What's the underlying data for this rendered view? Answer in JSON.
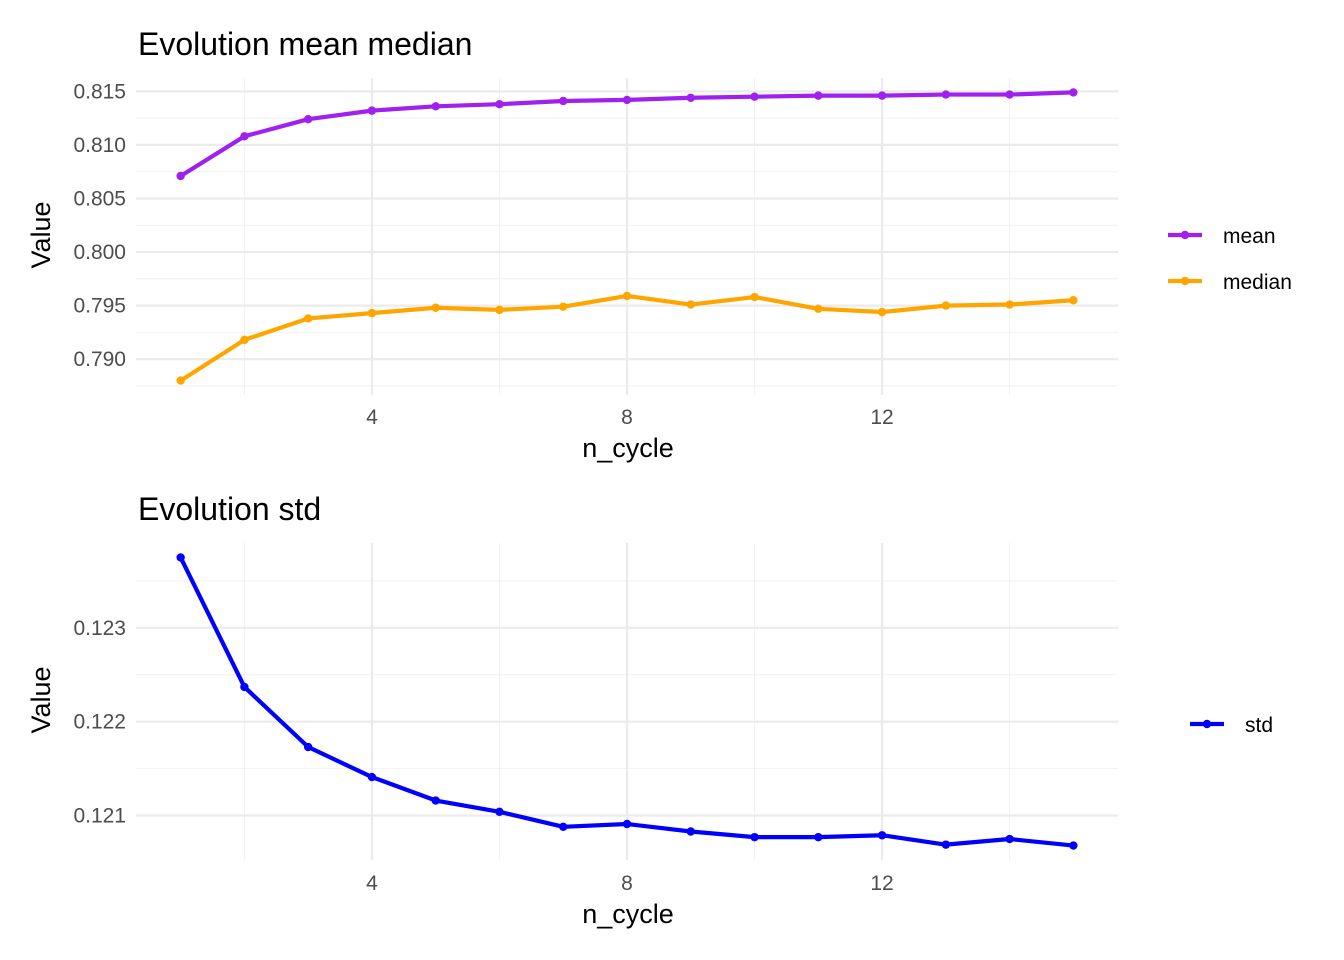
{
  "chart_data": [
    {
      "type": "line",
      "title": "Evolution mean median",
      "xlabel": "n_cycle",
      "ylabel": "Value",
      "xlim": [
        1,
        15
      ],
      "ylim": [
        0.788,
        0.8149
      ],
      "x_ticks": [
        4,
        8,
        12
      ],
      "x_tick_labels": [
        "4",
        "8",
        "12"
      ],
      "y_ticks": [
        0.79,
        0.795,
        0.8,
        0.805,
        0.81,
        0.815
      ],
      "y_tick_labels": [
        "0.790",
        "0.795",
        "0.800",
        "0.805",
        "0.810",
        "0.815"
      ],
      "grid": true,
      "legend_position": "right",
      "x": [
        1,
        2,
        3,
        4,
        5,
        6,
        7,
        8,
        9,
        10,
        11,
        12,
        13,
        14,
        15
      ],
      "series": [
        {
          "name": "mean",
          "color": "#a020f0",
          "values": [
            0.8071,
            0.8108,
            0.8124,
            0.8132,
            0.8136,
            0.8138,
            0.8141,
            0.8142,
            0.8144,
            0.8145,
            0.8146,
            0.8146,
            0.8147,
            0.8147,
            0.8149
          ]
        },
        {
          "name": "median",
          "color": "#ffa500",
          "values": [
            0.788,
            0.7918,
            0.7938,
            0.7943,
            0.7948,
            0.7946,
            0.7949,
            0.7959,
            0.7951,
            0.7958,
            0.7947,
            0.7944,
            0.795,
            0.7951,
            0.7955
          ]
        }
      ]
    },
    {
      "type": "line",
      "title": "Evolution std",
      "xlabel": "n_cycle",
      "ylabel": "Value",
      "xlim": [
        1,
        15
      ],
      "ylim": [
        0.12068,
        0.12375
      ],
      "x_ticks": [
        4,
        8,
        12
      ],
      "x_tick_labels": [
        "4",
        "8",
        "12"
      ],
      "y_ticks": [
        0.121,
        0.122,
        0.123
      ],
      "y_tick_labels": [
        "0.121",
        "0.122",
        "0.123"
      ],
      "grid": true,
      "legend_position": "right",
      "x": [
        1,
        2,
        3,
        4,
        5,
        6,
        7,
        8,
        9,
        10,
        11,
        12,
        13,
        14,
        15
      ],
      "series": [
        {
          "name": "std",
          "color": "#0000ff",
          "values": [
            0.12375,
            0.12237,
            0.12173,
            0.12141,
            0.12116,
            0.12104,
            0.12088,
            0.12091,
            0.12083,
            0.12077,
            0.12077,
            0.12079,
            0.12069,
            0.12075,
            0.12068
          ]
        }
      ]
    }
  ]
}
